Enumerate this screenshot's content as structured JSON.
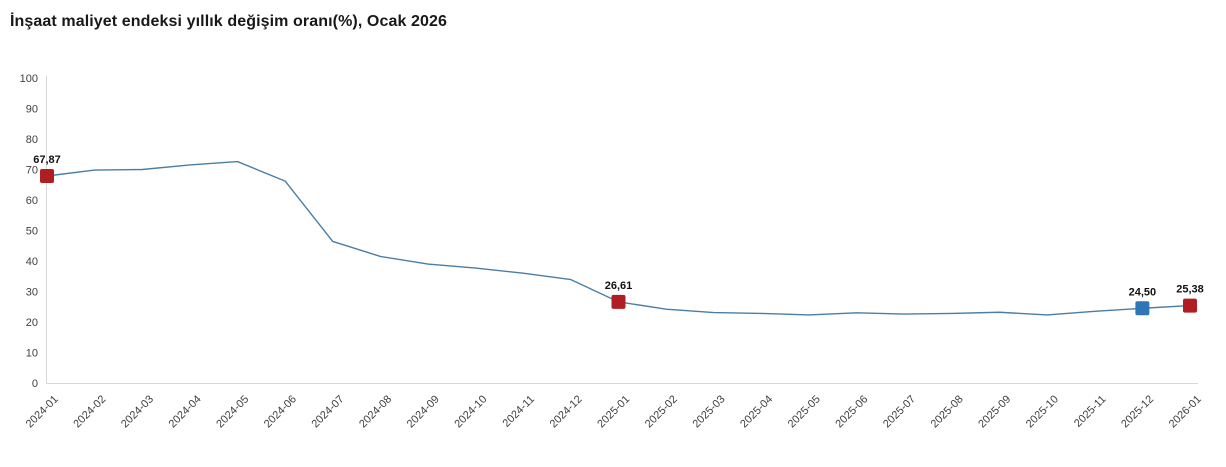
{
  "title": "İnşaat maliyet endeksi yıllık değişim oranı(%), Ocak 2026",
  "colors": {
    "line": "#4a7ea6",
    "marker_red": "#b01e24",
    "marker_blue": "#2e76b5",
    "axis": "#d8d8d8",
    "tick_text": "#404040",
    "title_text": "#18181b",
    "point_label_text": "#111111",
    "background": "#ffffff"
  },
  "chart_data": {
    "type": "line",
    "title": "İnşaat maliyet endeksi yıllık değişim oranı(%), Ocak 2026",
    "xlabel": "",
    "ylabel": "",
    "ylim": [
      0,
      100
    ],
    "ytick_step": 10,
    "grid": false,
    "legend": false,
    "x": [
      "2024-01",
      "2024-02",
      "2024-03",
      "2024-04",
      "2024-05",
      "2024-06",
      "2024-07",
      "2024-08",
      "2024-09",
      "2024-10",
      "2024-11",
      "2024-12",
      "2025-01",
      "2025-02",
      "2025-03",
      "2025-04",
      "2025-05",
      "2025-06",
      "2025-07",
      "2025-08",
      "2025-09",
      "2025-10",
      "2025-11",
      "2025-12",
      "2026-01"
    ],
    "series": [
      {
        "name": "Yıllık değişim oranı (%)",
        "values": [
          67.87,
          69.8,
          70.0,
          71.5,
          72.6,
          66.2,
          46.4,
          41.5,
          39.0,
          37.7,
          36.0,
          33.9,
          26.61,
          24.2,
          23.1,
          22.8,
          22.3,
          23.0,
          22.6,
          22.8,
          23.2,
          22.3,
          23.5,
          24.5,
          25.38
        ]
      }
    ],
    "marked_points": [
      {
        "x": "2024-01",
        "value": 67.87,
        "label": "67,87",
        "marker": "square",
        "color": "#b01e24"
      },
      {
        "x": "2025-01",
        "value": 26.61,
        "label": "26,61",
        "marker": "square",
        "color": "#b01e24"
      },
      {
        "x": "2025-12",
        "value": 24.5,
        "label": "24,50",
        "marker": "square",
        "color": "#2e76b5"
      },
      {
        "x": "2026-01",
        "value": 25.38,
        "label": "25,38",
        "marker": "square",
        "color": "#b01e24"
      }
    ]
  }
}
